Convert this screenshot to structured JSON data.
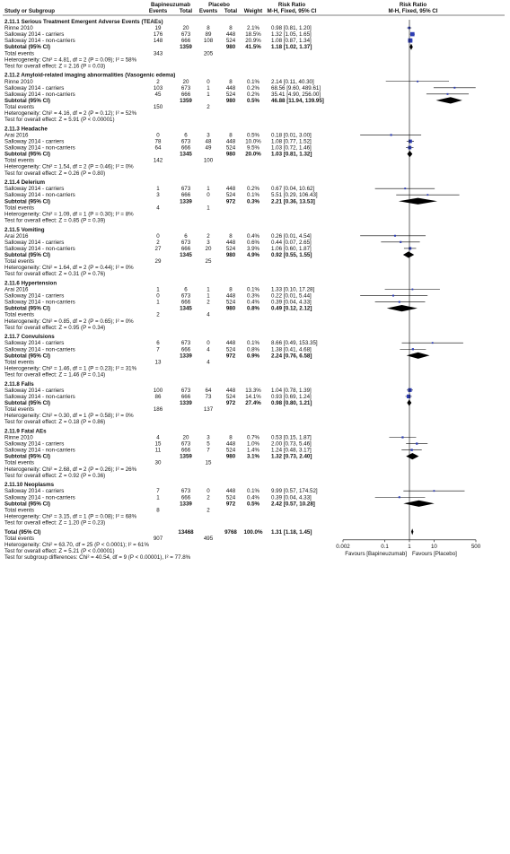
{
  "headers": {
    "study": "Study or Subgroup",
    "exp_group": "Bapineuzumab",
    "ctl_group": "Placebo",
    "exp_events": "Events",
    "exp_total": "Total",
    "ctl_events": "Events",
    "ctl_total": "Total",
    "weight": "Weight",
    "rr_text_title": "Risk Ratio",
    "rr_text_method": "M-H, Fixed, 95% CI",
    "rr_plot_title": "Risk Ratio",
    "rr_plot_method": "M-H, Fixed, 95% CI"
  },
  "labels": {
    "total_events": "Total events",
    "subtotal": "Subtotal (95% CI)"
  },
  "chart_data": {
    "type": "forest",
    "x_scale": "log",
    "xlim": [
      0.002,
      500
    ],
    "x_ticks": [
      "0.002",
      "0.1",
      "1",
      "10",
      "500"
    ],
    "x_tick_values": [
      0.002,
      0.1,
      1,
      10,
      500
    ],
    "favours_left": "Favours [Bapineuzumab]",
    "favours_right": "Favours [Placebo]",
    "colors": {
      "study_square": "#2d3db4",
      "diamond": "#000000",
      "line": "#000000"
    },
    "subgroups": [
      {
        "title": "2.11.1 Serious Treatment Emergent Adverse Events (TEAEs)",
        "studies": [
          {
            "name": "Rinne 2010",
            "e_ev": "19",
            "e_tot": "20",
            "c_ev": "8",
            "c_tot": "8",
            "weight": "2.1%",
            "rr_text": "0.98 [0.81, 1.20]",
            "rr": 0.98,
            "lo": 0.81,
            "hi": 1.2,
            "w": 2.1
          },
          {
            "name": "Salloway 2014 - carriers",
            "e_ev": "176",
            "e_tot": "673",
            "c_ev": "89",
            "c_tot": "448",
            "weight": "18.5%",
            "rr_text": "1.32 [1.05, 1.65]",
            "rr": 1.32,
            "lo": 1.05,
            "hi": 1.65,
            "w": 18.5
          },
          {
            "name": "Salloway 2014 - non-carriers",
            "e_ev": "148",
            "e_tot": "666",
            "c_ev": "108",
            "c_tot": "524",
            "weight": "20.9%",
            "rr_text": "1.08 [0.87, 1.34]",
            "rr": 1.08,
            "lo": 0.87,
            "hi": 1.34,
            "w": 20.9
          }
        ],
        "subtotal": {
          "e_tot": "1359",
          "c_tot": "980",
          "weight": "41.5%",
          "rr_text": "1.18 [1.02, 1.37]",
          "rr": 1.18,
          "lo": 1.02,
          "hi": 1.37
        },
        "total_events": {
          "e": "343",
          "c": "205"
        },
        "heterogeneity": "Heterogeneity: Chi² = 4.81, df = 2 (P = 0.09); I² = 58%",
        "overall": "Test for overall effect: Z = 2.16 (P = 0.03)"
      },
      {
        "title": "2.11.2 Amyloid-related imaging abnormalities (Vasogenic edema)",
        "studies": [
          {
            "name": "Rinne 2010",
            "e_ev": "2",
            "e_tot": "20",
            "c_ev": "0",
            "c_tot": "8",
            "weight": "0.1%",
            "rr_text": "2.14 [0.11, 40.30]",
            "rr": 2.14,
            "lo": 0.11,
            "hi": 40.3,
            "w": 0.1
          },
          {
            "name": "Salloway 2014 - carriers",
            "e_ev": "103",
            "e_tot": "673",
            "c_ev": "1",
            "c_tot": "448",
            "weight": "0.2%",
            "rr_text": "68.56 [9.60, 489.61]",
            "rr": 68.56,
            "lo": 9.6,
            "hi": 489.61,
            "w": 0.2
          },
          {
            "name": "Salloway 2014 - non-carriers",
            "e_ev": "45",
            "e_tot": "666",
            "c_ev": "1",
            "c_tot": "524",
            "weight": "0.2%",
            "rr_text": "35.41 [4.90, 256.00]",
            "rr": 35.41,
            "lo": 4.9,
            "hi": 256.0,
            "w": 0.2
          }
        ],
        "subtotal": {
          "e_tot": "1359",
          "c_tot": "980",
          "weight": "0.5%",
          "rr_text": "46.88 [11.94, 139.95]",
          "rr": 46.88,
          "lo": 11.94,
          "hi": 139.95
        },
        "total_events": {
          "e": "150",
          "c": "2"
        },
        "heterogeneity": "Heterogeneity: Chi² = 4.16, df = 2 (P = 0.12); I² = 52%",
        "overall": "Test for overall effect: Z = 5.91 (P < 0.00001)"
      },
      {
        "title": "2.11.3 Headache",
        "studies": [
          {
            "name": "Arai 2016",
            "e_ev": "0",
            "e_tot": "6",
            "c_ev": "3",
            "c_tot": "8",
            "weight": "0.5%",
            "rr_text": "0.18 [0.01, 3.00]",
            "rr": 0.18,
            "lo": 0.01,
            "hi": 3.0,
            "w": 0.5
          },
          {
            "name": "Salloway 2014 - carriers",
            "e_ev": "78",
            "e_tot": "673",
            "c_ev": "48",
            "c_tot": "448",
            "weight": "10.0%",
            "rr_text": "1.08 [0.77, 1.52]",
            "rr": 1.08,
            "lo": 0.77,
            "hi": 1.52,
            "w": 10.0
          },
          {
            "name": "Salloway 2014 - non-carriers",
            "e_ev": "64",
            "e_tot": "666",
            "c_ev": "49",
            "c_tot": "524",
            "weight": "9.5%",
            "rr_text": "1.03 [0.72, 1.46]",
            "rr": 1.03,
            "lo": 0.72,
            "hi": 1.46,
            "w": 9.5
          }
        ],
        "subtotal": {
          "e_tot": "1345",
          "c_tot": "980",
          "weight": "20.0%",
          "rr_text": "1.03 [0.81, 1.32]",
          "rr": 1.03,
          "lo": 0.81,
          "hi": 1.32
        },
        "total_events": {
          "e": "142",
          "c": "100"
        },
        "heterogeneity": "Heterogeneity: Chi² = 1.54, df = 2 (P = 0.46); I² = 0%",
        "overall": "Test for overall effect: Z = 0.26 (P = 0.80)"
      },
      {
        "title": "2.11.4 Delerium",
        "studies": [
          {
            "name": "Salloway 2014 - carriers",
            "e_ev": "1",
            "e_tot": "673",
            "c_ev": "1",
            "c_tot": "448",
            "weight": "0.2%",
            "rr_text": "0.67 [0.04, 10.62]",
            "rr": 0.67,
            "lo": 0.04,
            "hi": 10.62,
            "w": 0.2
          },
          {
            "name": "Salloway 2014 - non-carriers",
            "e_ev": "3",
            "e_tot": "666",
            "c_ev": "0",
            "c_tot": "524",
            "weight": "0.1%",
            "rr_text": "5.51 [0.29, 106.43]",
            "rr": 5.51,
            "lo": 0.29,
            "hi": 106.43,
            "w": 0.1
          }
        ],
        "subtotal": {
          "e_tot": "1339",
          "c_tot": "972",
          "weight": "0.3%",
          "rr_text": "2.21 [0.36, 13.53]",
          "rr": 2.21,
          "lo": 0.36,
          "hi": 13.53
        },
        "total_events": {
          "e": "4",
          "c": "1"
        },
        "heterogeneity": "Heterogeneity: Chi² = 1.09, df = 1 (P = 0.30); I² = 8%",
        "overall": "Test for overall effect: Z = 0.85 (P = 0.39)"
      },
      {
        "title": "2.11.5 Vomiting",
        "studies": [
          {
            "name": "Arai 2016",
            "e_ev": "0",
            "e_tot": "6",
            "c_ev": "2",
            "c_tot": "8",
            "weight": "0.4%",
            "rr_text": "0.26 [0.01, 4.54]",
            "rr": 0.26,
            "lo": 0.01,
            "hi": 4.54,
            "w": 0.4
          },
          {
            "name": "Salloway 2014 - carriers",
            "e_ev": "2",
            "e_tot": "673",
            "c_ev": "3",
            "c_tot": "448",
            "weight": "0.6%",
            "rr_text": "0.44 [0.07, 2.65]",
            "rr": 0.44,
            "lo": 0.07,
            "hi": 2.65,
            "w": 0.6
          },
          {
            "name": "Salloway 2014 - non-carriers",
            "e_ev": "27",
            "e_tot": "666",
            "c_ev": "20",
            "c_tot": "524",
            "weight": "3.9%",
            "rr_text": "1.06 [0.60, 1.87]",
            "rr": 1.06,
            "lo": 0.6,
            "hi": 1.87,
            "w": 3.9
          }
        ],
        "subtotal": {
          "e_tot": "1345",
          "c_tot": "980",
          "weight": "4.9%",
          "rr_text": "0.92 [0.55, 1.55]",
          "rr": 0.92,
          "lo": 0.55,
          "hi": 1.55
        },
        "total_events": {
          "e": "29",
          "c": "25"
        },
        "heterogeneity": "Heterogeneity: Chi² = 1.64, df = 2 (P = 0.44); I² = 0%",
        "overall": "Test for overall effect: Z = 0.31 (P = 0.76)"
      },
      {
        "title": "2.11.6 Hypertension",
        "studies": [
          {
            "name": "Arai 2016",
            "e_ev": "1",
            "e_tot": "6",
            "c_ev": "1",
            "c_tot": "8",
            "weight": "0.1%",
            "rr_text": "1.33 [0.10, 17.28]",
            "rr": 1.33,
            "lo": 0.1,
            "hi": 17.28,
            "w": 0.1
          },
          {
            "name": "Salloway 2014 - carriers",
            "e_ev": "0",
            "e_tot": "673",
            "c_ev": "1",
            "c_tot": "448",
            "weight": "0.3%",
            "rr_text": "0.22 [0.01, 5.44]",
            "rr": 0.22,
            "lo": 0.01,
            "hi": 5.44,
            "w": 0.3
          },
          {
            "name": "Salloway 2014 - non-carriers",
            "e_ev": "1",
            "e_tot": "666",
            "c_ev": "2",
            "c_tot": "524",
            "weight": "0.4%",
            "rr_text": "0.39 [0.04, 4.33]",
            "rr": 0.39,
            "lo": 0.04,
            "hi": 4.33,
            "w": 0.4
          }
        ],
        "subtotal": {
          "e_tot": "1345",
          "c_tot": "980",
          "weight": "0.8%",
          "rr_text": "0.49 [0.12, 2.12]",
          "rr": 0.49,
          "lo": 0.12,
          "hi": 2.12
        },
        "total_events": {
          "e": "2",
          "c": "4"
        },
        "heterogeneity": "Heterogeneity: Chi² = 0.85, df = 2 (P = 0.65); I² = 0%",
        "overall": "Test for overall effect: Z = 0.95 (P = 0.34)"
      },
      {
        "title": "2.11.7 Convulsions",
        "studies": [
          {
            "name": "Salloway 2014 - carriers",
            "e_ev": "6",
            "e_tot": "673",
            "c_ev": "0",
            "c_tot": "448",
            "weight": "0.1%",
            "rr_text": "8.66 [0.49, 153.35]",
            "rr": 8.66,
            "lo": 0.49,
            "hi": 153.35,
            "w": 0.1
          },
          {
            "name": "Salloway 2014 - non-carriers",
            "e_ev": "7",
            "e_tot": "666",
            "c_ev": "4",
            "c_tot": "524",
            "weight": "0.8%",
            "rr_text": "1.38 [0.41, 4.68]",
            "rr": 1.38,
            "lo": 0.41,
            "hi": 4.68,
            "w": 0.8
          }
        ],
        "subtotal": {
          "e_tot": "1339",
          "c_tot": "972",
          "weight": "0.9%",
          "rr_text": "2.24 [0.76, 6.58]",
          "rr": 2.24,
          "lo": 0.76,
          "hi": 6.58
        },
        "total_events": {
          "e": "13",
          "c": "4"
        },
        "heterogeneity": "Heterogeneity: Chi² = 1.46, df = 1 (P = 0.23); I² = 31%",
        "overall": "Test for overall effect: Z = 1.46 (P = 0.14)"
      },
      {
        "title": "2.11.8 Falls",
        "studies": [
          {
            "name": "Salloway 2014 - carriers",
            "e_ev": "100",
            "e_tot": "673",
            "c_ev": "64",
            "c_tot": "448",
            "weight": "13.3%",
            "rr_text": "1.04 [0.78, 1.39]",
            "rr": 1.04,
            "lo": 0.78,
            "hi": 1.39,
            "w": 13.3
          },
          {
            "name": "Salloway 2014 - non-carriers",
            "e_ev": "86",
            "e_tot": "666",
            "c_ev": "73",
            "c_tot": "524",
            "weight": "14.1%",
            "rr_text": "0.93 [0.69, 1.24]",
            "rr": 0.93,
            "lo": 0.69,
            "hi": 1.24,
            "w": 14.1
          }
        ],
        "subtotal": {
          "e_tot": "1339",
          "c_tot": "972",
          "weight": "27.4%",
          "rr_text": "0.98 [0.80, 1.21]",
          "rr": 0.98,
          "lo": 0.8,
          "hi": 1.21
        },
        "total_events": {
          "e": "186",
          "c": "137"
        },
        "heterogeneity": "Heterogeneity: Chi² = 0.30, df = 1 (P = 0.58); I² = 0%",
        "overall": "Test for overall effect: Z = 0.18 (P = 0.86)"
      },
      {
        "title": "2.11.9 Fatal AEs",
        "studies": [
          {
            "name": "Rinne 2010",
            "e_ev": "4",
            "e_tot": "20",
            "c_ev": "3",
            "c_tot": "8",
            "weight": "0.7%",
            "rr_text": "0.53 [0.15, 1.87]",
            "rr": 0.53,
            "lo": 0.15,
            "hi": 1.87,
            "w": 0.7
          },
          {
            "name": "Salloway 2014 - carriers",
            "e_ev": "15",
            "e_tot": "673",
            "c_ev": "5",
            "c_tot": "448",
            "weight": "1.0%",
            "rr_text": "2.00 [0.73, 5.46]",
            "rr": 2.0,
            "lo": 0.73,
            "hi": 5.46,
            "w": 1.0
          },
          {
            "name": "Salloway 2014 - non-carriers",
            "e_ev": "11",
            "e_tot": "666",
            "c_ev": "7",
            "c_tot": "524",
            "weight": "1.4%",
            "rr_text": "1.24 [0.48, 3.17]",
            "rr": 1.24,
            "lo": 0.48,
            "hi": 3.17,
            "w": 1.4
          }
        ],
        "subtotal": {
          "e_tot": "1359",
          "c_tot": "980",
          "weight": "3.1%",
          "rr_text": "1.32 [0.73, 2.40]",
          "rr": 1.32,
          "lo": 0.73,
          "hi": 2.4
        },
        "total_events": {
          "e": "30",
          "c": "15"
        },
        "heterogeneity": "Heterogeneity: Chi² = 2.68, df = 2 (P = 0.26); I² = 26%",
        "overall": "Test for overall effect: Z = 0.92 (P = 0.36)"
      },
      {
        "title": "2.11.10 Neoplasms",
        "studies": [
          {
            "name": "Salloway 2014 - carriers",
            "e_ev": "7",
            "e_tot": "673",
            "c_ev": "0",
            "c_tot": "448",
            "weight": "0.1%",
            "rr_text": "9.99 [0.57, 174.52]",
            "rr": 9.99,
            "lo": 0.57,
            "hi": 174.52,
            "w": 0.1
          },
          {
            "name": "Salloway 2014 - non-carriers",
            "e_ev": "1",
            "e_tot": "666",
            "c_ev": "2",
            "c_tot": "524",
            "weight": "0.4%",
            "rr_text": "0.39 [0.04, 4.33]",
            "rr": 0.39,
            "lo": 0.04,
            "hi": 4.33,
            "w": 0.4
          }
        ],
        "subtotal": {
          "e_tot": "1339",
          "c_tot": "972",
          "weight": "0.5%",
          "rr_text": "2.42 [0.57, 10.28]",
          "rr": 2.42,
          "lo": 0.57,
          "hi": 10.28
        },
        "total_events": {
          "e": "8",
          "c": "2"
        },
        "heterogeneity": "Heterogeneity: Chi² = 3.15, df = 1 (P = 0.08); I² = 68%",
        "overall": "Test for overall effect: Z = 1.20 (P = 0.23)"
      }
    ],
    "total": {
      "label": "Total (95% CI)",
      "e_tot": "13468",
      "c_tot": "9768",
      "weight": "100.0%",
      "rr_text": "1.31 [1.18, 1.45]",
      "rr": 1.31,
      "lo": 1.18,
      "hi": 1.45,
      "events_e": "907",
      "events_c": "495",
      "heterogeneity": "Heterogeneity: Chi² = 63.70, df = 25 (P < 0.0001); I² = 61%",
      "overall": "Test for overall effect: Z = 5.21 (P < 0.00001)",
      "subgroup_diff": "Test for subgroup differences: Chi² = 40.54, df = 9 (P < 0.00001), I² = 77.8%"
    }
  }
}
